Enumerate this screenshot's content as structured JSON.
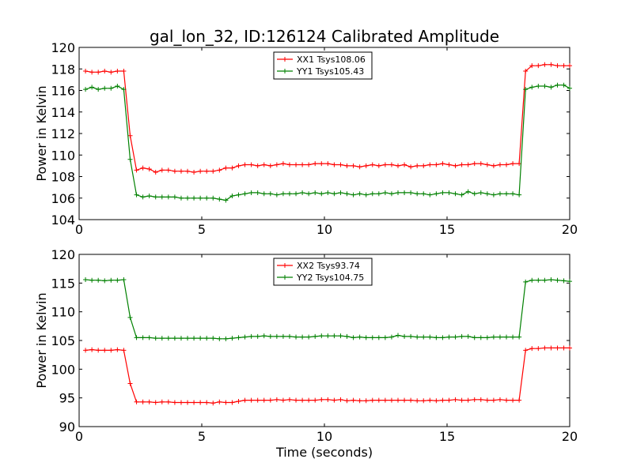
{
  "figure": {
    "title": "gal_lon_32, ID:126124 Calibrated Amplitude",
    "xlabel": "Time (seconds)"
  },
  "chart_data": [
    {
      "type": "line",
      "ylabel": "Power in Kelvin",
      "xlim": [
        0,
        20
      ],
      "ylim": [
        104,
        120
      ],
      "xticks": [
        0,
        5,
        10,
        15,
        20
      ],
      "yticks": [
        104,
        106,
        108,
        110,
        112,
        114,
        116,
        118,
        120
      ],
      "legend_position": "top-center",
      "grid": false,
      "series": [
        {
          "name": "XX1 Tsys108.06",
          "color": "#ff0000",
          "marker": "plus",
          "x": [
            0.26,
            0.52,
            0.78,
            1.04,
            1.3,
            1.56,
            1.82,
            2.08,
            2.34,
            2.6,
            2.86,
            3.12,
            3.38,
            3.64,
            3.9,
            4.16,
            4.42,
            4.68,
            4.94,
            5.2,
            5.46,
            5.72,
            5.98,
            6.24,
            6.5,
            6.76,
            7.02,
            7.28,
            7.54,
            7.8,
            8.06,
            8.32,
            8.58,
            8.84,
            9.1,
            9.36,
            9.62,
            9.88,
            10.14,
            10.4,
            10.66,
            10.92,
            11.18,
            11.44,
            11.7,
            11.96,
            12.22,
            12.48,
            12.74,
            13.0,
            13.26,
            13.52,
            13.78,
            14.04,
            14.3,
            14.56,
            14.82,
            15.08,
            15.34,
            15.6,
            15.86,
            16.12,
            16.38,
            16.64,
            16.9,
            17.16,
            17.42,
            17.68,
            17.94,
            18.2,
            18.46,
            18.72,
            18.98,
            19.24,
            19.5,
            19.76,
            20.0
          ],
          "y": [
            117.8,
            117.7,
            117.7,
            117.8,
            117.7,
            117.8,
            117.8,
            111.8,
            108.6,
            108.8,
            108.7,
            108.4,
            108.6,
            108.6,
            108.5,
            108.5,
            108.5,
            108.4,
            108.5,
            108.5,
            108.5,
            108.6,
            108.8,
            108.8,
            109.0,
            109.1,
            109.1,
            109.0,
            109.1,
            109.0,
            109.1,
            109.2,
            109.1,
            109.1,
            109.1,
            109.1,
            109.2,
            109.2,
            109.2,
            109.1,
            109.1,
            109.0,
            109.0,
            108.9,
            109.0,
            109.1,
            109.0,
            109.1,
            109.1,
            109.0,
            109.1,
            108.9,
            109.0,
            109.0,
            109.1,
            109.1,
            109.2,
            109.1,
            109.0,
            109.1,
            109.1,
            109.2,
            109.2,
            109.1,
            109.0,
            109.1,
            109.1,
            109.2,
            109.2,
            117.8,
            118.3,
            118.3,
            118.4,
            118.4,
            118.3,
            118.3,
            118.3
          ]
        },
        {
          "name": "YY1 Tsys105.43",
          "color": "#008000",
          "marker": "plus",
          "x": [
            0.26,
            0.52,
            0.78,
            1.04,
            1.3,
            1.56,
            1.82,
            2.08,
            2.34,
            2.6,
            2.86,
            3.12,
            3.38,
            3.64,
            3.9,
            4.16,
            4.42,
            4.68,
            4.94,
            5.2,
            5.46,
            5.72,
            5.98,
            6.24,
            6.5,
            6.76,
            7.02,
            7.28,
            7.54,
            7.8,
            8.06,
            8.32,
            8.58,
            8.84,
            9.1,
            9.36,
            9.62,
            9.88,
            10.14,
            10.4,
            10.66,
            10.92,
            11.18,
            11.44,
            11.7,
            11.96,
            12.22,
            12.48,
            12.74,
            13.0,
            13.26,
            13.52,
            13.78,
            14.04,
            14.3,
            14.56,
            14.82,
            15.08,
            15.34,
            15.6,
            15.86,
            16.12,
            16.38,
            16.64,
            16.9,
            17.16,
            17.42,
            17.68,
            17.94,
            18.2,
            18.46,
            18.72,
            18.98,
            19.24,
            19.5,
            19.76,
            20.0
          ],
          "y": [
            116.1,
            116.3,
            116.1,
            116.2,
            116.2,
            116.4,
            116.1,
            109.6,
            106.3,
            106.1,
            106.2,
            106.1,
            106.1,
            106.1,
            106.1,
            106.0,
            106.0,
            106.0,
            106.0,
            106.0,
            106.0,
            105.9,
            105.8,
            106.2,
            106.3,
            106.4,
            106.5,
            106.5,
            106.4,
            106.4,
            106.3,
            106.4,
            106.4,
            106.4,
            106.5,
            106.4,
            106.5,
            106.4,
            106.5,
            106.4,
            106.5,
            106.4,
            106.3,
            106.4,
            106.3,
            106.4,
            106.4,
            106.5,
            106.4,
            106.5,
            106.5,
            106.5,
            106.4,
            106.4,
            106.3,
            106.4,
            106.5,
            106.5,
            106.4,
            106.3,
            106.6,
            106.4,
            106.5,
            106.4,
            106.3,
            106.4,
            106.4,
            106.4,
            106.3,
            116.1,
            116.3,
            116.4,
            116.4,
            116.3,
            116.5,
            116.5,
            116.2
          ]
        }
      ]
    },
    {
      "type": "line",
      "ylabel": "Power in Kelvin",
      "xlabel": "Time (seconds)",
      "xlim": [
        0,
        20
      ],
      "ylim": [
        90,
        120
      ],
      "xticks": [
        0,
        5,
        10,
        15,
        20
      ],
      "yticks": [
        90,
        95,
        100,
        105,
        110,
        115,
        120
      ],
      "legend_position": "top-center",
      "grid": false,
      "series": [
        {
          "name": "XX2 Tsys93.74",
          "color": "#ff0000",
          "marker": "plus",
          "x": [
            0.26,
            0.52,
            0.78,
            1.04,
            1.3,
            1.56,
            1.82,
            2.08,
            2.34,
            2.6,
            2.86,
            3.12,
            3.38,
            3.64,
            3.9,
            4.16,
            4.42,
            4.68,
            4.94,
            5.2,
            5.46,
            5.72,
            5.98,
            6.24,
            6.5,
            6.76,
            7.02,
            7.28,
            7.54,
            7.8,
            8.06,
            8.32,
            8.58,
            8.84,
            9.1,
            9.36,
            9.62,
            9.88,
            10.14,
            10.4,
            10.66,
            10.92,
            11.18,
            11.44,
            11.7,
            11.96,
            12.22,
            12.48,
            12.74,
            13.0,
            13.26,
            13.52,
            13.78,
            14.04,
            14.3,
            14.56,
            14.82,
            15.08,
            15.34,
            15.6,
            15.86,
            16.12,
            16.38,
            16.64,
            16.9,
            17.16,
            17.42,
            17.68,
            17.94,
            18.2,
            18.46,
            18.72,
            18.98,
            19.24,
            19.5,
            19.76,
            20.0
          ],
          "y": [
            103.3,
            103.4,
            103.3,
            103.3,
            103.3,
            103.4,
            103.3,
            97.5,
            94.3,
            94.3,
            94.3,
            94.2,
            94.3,
            94.3,
            94.2,
            94.2,
            94.2,
            94.2,
            94.2,
            94.2,
            94.1,
            94.3,
            94.2,
            94.2,
            94.4,
            94.6,
            94.6,
            94.6,
            94.6,
            94.6,
            94.7,
            94.6,
            94.7,
            94.6,
            94.6,
            94.6,
            94.6,
            94.7,
            94.7,
            94.6,
            94.7,
            94.5,
            94.6,
            94.5,
            94.5,
            94.6,
            94.6,
            94.6,
            94.6,
            94.6,
            94.6,
            94.6,
            94.5,
            94.5,
            94.6,
            94.5,
            94.6,
            94.6,
            94.7,
            94.6,
            94.6,
            94.7,
            94.7,
            94.6,
            94.6,
            94.7,
            94.6,
            94.6,
            94.6,
            103.3,
            103.6,
            103.6,
            103.7,
            103.7,
            103.7,
            103.7,
            103.7
          ]
        },
        {
          "name": "YY2 Tsys104.75",
          "color": "#008000",
          "marker": "plus",
          "x": [
            0.26,
            0.52,
            0.78,
            1.04,
            1.3,
            1.56,
            1.82,
            2.08,
            2.34,
            2.6,
            2.86,
            3.12,
            3.38,
            3.64,
            3.9,
            4.16,
            4.42,
            4.68,
            4.94,
            5.2,
            5.46,
            5.72,
            5.98,
            6.24,
            6.5,
            6.76,
            7.02,
            7.28,
            7.54,
            7.8,
            8.06,
            8.32,
            8.58,
            8.84,
            9.1,
            9.36,
            9.62,
            9.88,
            10.14,
            10.4,
            10.66,
            10.92,
            11.18,
            11.44,
            11.7,
            11.96,
            12.22,
            12.48,
            12.74,
            13.0,
            13.26,
            13.52,
            13.78,
            14.04,
            14.3,
            14.56,
            14.82,
            15.08,
            15.34,
            15.6,
            15.86,
            16.12,
            16.38,
            16.64,
            16.9,
            17.16,
            17.42,
            17.68,
            17.94,
            18.2,
            18.46,
            18.72,
            18.98,
            19.24,
            19.5,
            19.76,
            20.0
          ],
          "y": [
            115.6,
            115.5,
            115.5,
            115.4,
            115.5,
            115.5,
            115.6,
            109.0,
            105.5,
            105.5,
            105.5,
            105.4,
            105.4,
            105.4,
            105.4,
            105.4,
            105.4,
            105.4,
            105.4,
            105.4,
            105.4,
            105.3,
            105.3,
            105.4,
            105.5,
            105.6,
            105.7,
            105.7,
            105.8,
            105.7,
            105.7,
            105.7,
            105.7,
            105.6,
            105.6,
            105.6,
            105.7,
            105.8,
            105.8,
            105.8,
            105.8,
            105.7,
            105.5,
            105.6,
            105.5,
            105.5,
            105.5,
            105.5,
            105.6,
            105.9,
            105.7,
            105.7,
            105.6,
            105.6,
            105.6,
            105.5,
            105.5,
            105.6,
            105.6,
            105.7,
            105.7,
            105.5,
            105.5,
            105.5,
            105.6,
            105.6,
            105.6,
            105.6,
            105.6,
            115.2,
            115.5,
            115.5,
            115.5,
            115.6,
            115.5,
            115.4,
            115.3
          ]
        }
      ]
    }
  ]
}
